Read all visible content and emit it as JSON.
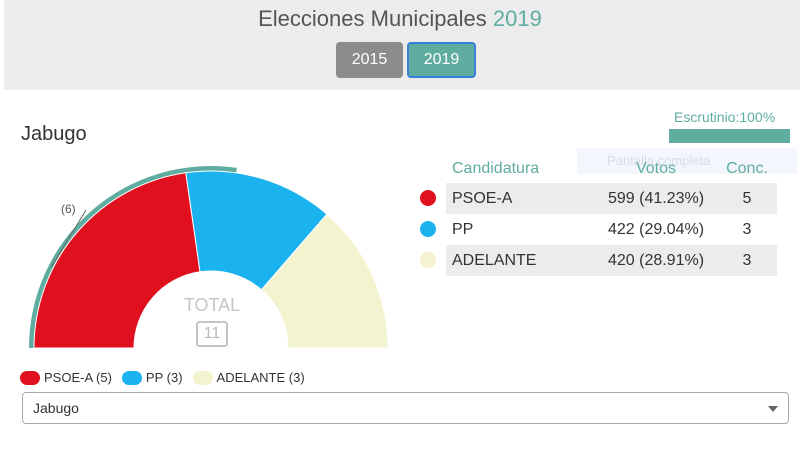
{
  "header": {
    "title_prefix": "Elecciones Municipales",
    "title_year": "2019",
    "years": [
      "2015",
      "2019"
    ],
    "selected_year": "2019"
  },
  "municipality": "Jabugo",
  "scrutiny": {
    "label": "Escrutinio:100%",
    "percent": 100
  },
  "fullscreen_overlay": "Pantalla completa",
  "chart_data": {
    "type": "pie",
    "total_label": "TOTAL",
    "total_seats": "11",
    "majority_callout": "(6)",
    "slices": [
      {
        "name": "PSOE-A",
        "seats": 5,
        "color": "#e0101e"
      },
      {
        "name": "PP",
        "seats": 3,
        "color": "#1ab2ef"
      },
      {
        "name": "ADELANTE",
        "seats": 3,
        "color": "#f3f3cf"
      }
    ]
  },
  "table": {
    "headers": {
      "name": "Candidatura",
      "votes": "Votos",
      "seats": "Conc."
    },
    "rows": [
      {
        "name": "PSOE-A",
        "votes": "599 (41.23%)",
        "seats": "5",
        "color": "#e0101e"
      },
      {
        "name": "PP",
        "votes": "422 (29.04%)",
        "seats": "3",
        "color": "#1ab2ef"
      },
      {
        "name": "ADELANTE",
        "votes": "420 (28.91%)",
        "seats": "3",
        "color": "#f3f3cf"
      }
    ]
  },
  "legend": [
    {
      "label": "PSOE-A (5)",
      "color": "#e0101e"
    },
    {
      "label": "PP (3)",
      "color": "#1ab2ef"
    },
    {
      "label": "ADELANTE (3)",
      "color": "#f3f3cf"
    }
  ],
  "selector": {
    "value": "Jabugo"
  },
  "colors": {
    "accent": "#5fada0"
  }
}
